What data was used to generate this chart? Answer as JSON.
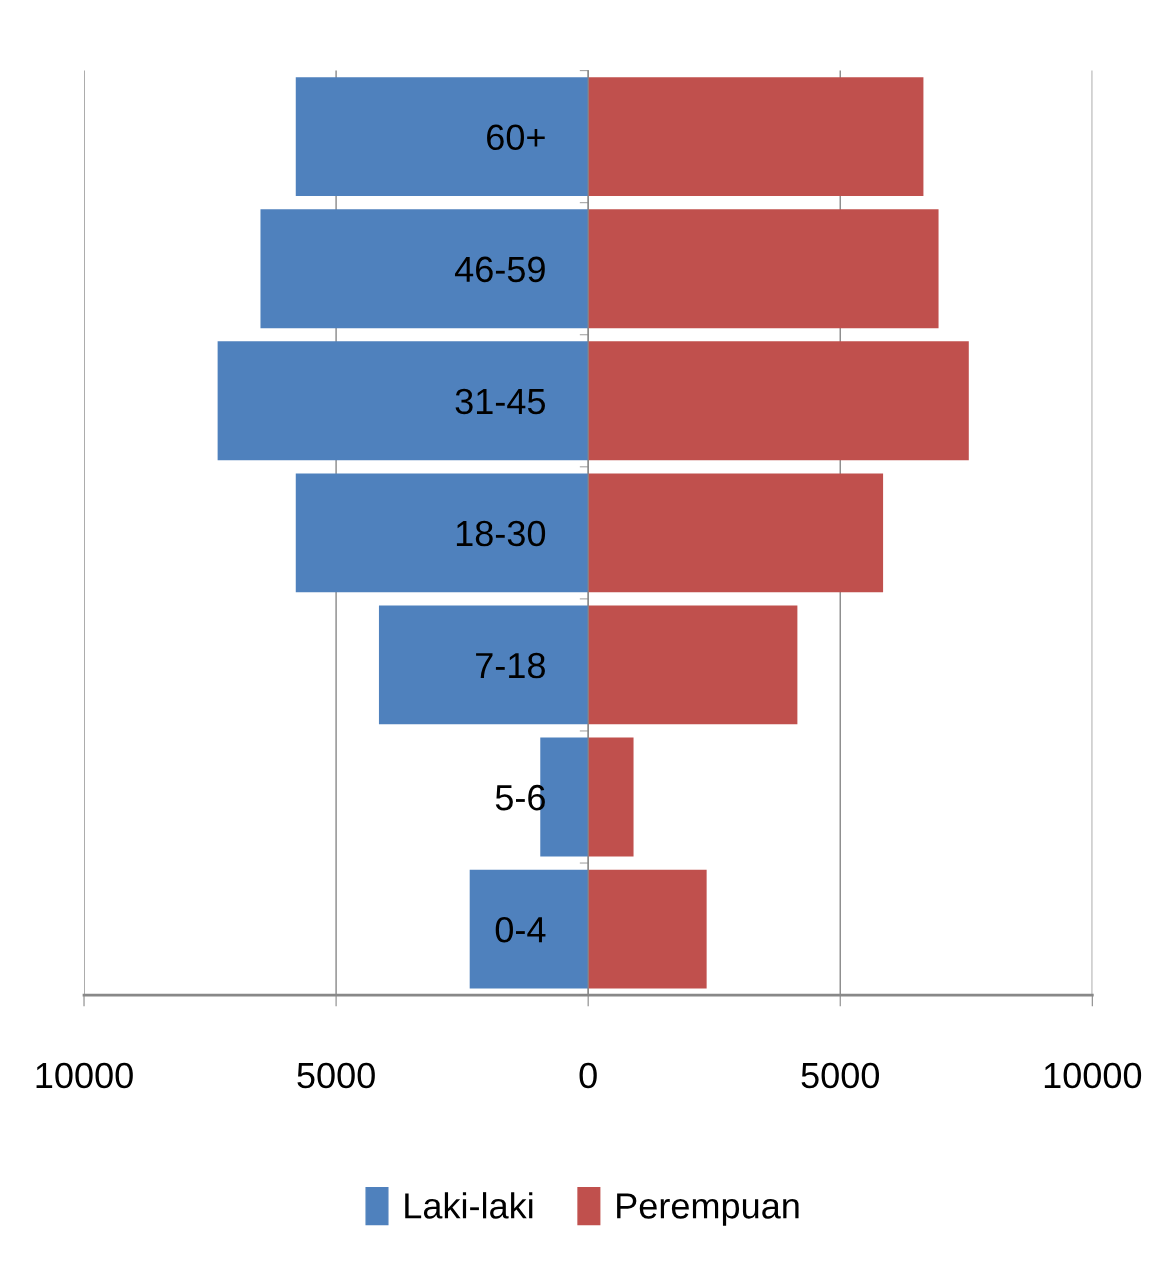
{
  "chart_data": {
    "type": "bar",
    "orientation": "horizontal",
    "categories": [
      "60+",
      "46-59",
      "31-45",
      "18-30",
      "7-18",
      "5-6",
      "0-4"
    ],
    "series": [
      {
        "name": "Laki-laki",
        "color": "#4f81bd",
        "values": [
          -5800,
          -6500,
          -7350,
          -5800,
          -4150,
          -950,
          -2350
        ]
      },
      {
        "name": "Perempuan",
        "color": "#c0504d",
        "values": [
          6650,
          6950,
          7550,
          5850,
          4150,
          900,
          2350
        ]
      }
    ],
    "xlim": [
      -10000,
      10000
    ],
    "xticks": [
      {
        "value": -10000,
        "label": "10000"
      },
      {
        "value": -5000,
        "label": "5000"
      },
      0,
      5000,
      10000
    ],
    "stacked": true,
    "grid": "x",
    "legend": "bottom"
  }
}
